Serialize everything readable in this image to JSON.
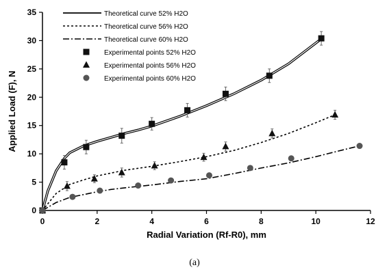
{
  "chart_data": {
    "type": "line",
    "xlabel": "Radial Variation (Rf-R0), mm",
    "ylabel": "Applied Load (F), N",
    "caption": "(a)",
    "xlim": [
      0,
      12
    ],
    "ylim": [
      0,
      35
    ],
    "xticks": [
      "0",
      "2",
      "4",
      "6",
      "8",
      "10",
      "12"
    ],
    "yticks": [
      "0",
      "5",
      "10",
      "15",
      "20",
      "25",
      "30",
      "35"
    ],
    "legend_position": "top-left",
    "curves": [
      {
        "name": "Theoretical curve 52% H2O",
        "style": "solid-double",
        "x": [
          0,
          0.2,
          0.5,
          0.8,
          1.0,
          1.5,
          2.0,
          2.5,
          3.0,
          3.5,
          4.0,
          5.0,
          6.0,
          7.0,
          8.0,
          9.0,
          10.2
        ],
        "y": [
          0,
          3.5,
          7.0,
          9.2,
          10.2,
          11.4,
          12.2,
          12.9,
          13.6,
          14.2,
          14.9,
          16.6,
          18.5,
          20.6,
          23.0,
          25.9,
          30.3
        ]
      },
      {
        "name": "Theoretical curve 56% H2O",
        "style": "dotted",
        "x": [
          0,
          0.5,
          1.0,
          1.5,
          2.0,
          3.0,
          4.0,
          5.0,
          6.0,
          7.0,
          8.0,
          9.0,
          10.0,
          10.7
        ],
        "y": [
          0,
          3.0,
          4.6,
          5.4,
          6.1,
          7.1,
          7.8,
          8.6,
          9.5,
          10.6,
          12.0,
          13.6,
          15.5,
          16.9
        ]
      },
      {
        "name": "Theoretical curve 60% H2O",
        "style": "dash-dot",
        "x": [
          0,
          0.5,
          1.0,
          1.5,
          2.0,
          2.5,
          3.0,
          4.0,
          5.0,
          6.0,
          7.0,
          8.0,
          9.0,
          10.0,
          11.0,
          11.6
        ],
        "y": [
          0,
          1.4,
          2.3,
          2.8,
          3.3,
          3.7,
          4.0,
          4.5,
          5.1,
          5.6,
          6.5,
          7.5,
          8.4,
          9.5,
          10.7,
          11.4
        ]
      }
    ],
    "points": [
      {
        "name": "Experimental points 52% H2O",
        "marker": "square",
        "x": [
          0,
          0.8,
          1.6,
          2.9,
          4.0,
          5.3,
          6.7,
          8.3,
          10.2
        ],
        "y": [
          0,
          8.5,
          11.2,
          13.2,
          15.3,
          17.7,
          20.6,
          23.8,
          30.4
        ],
        "err": [
          0,
          1.2,
          1.2,
          1.3,
          1.1,
          1.2,
          1.2,
          1.2,
          1.2
        ]
      },
      {
        "name": "Experimental points 56% H2O",
        "marker": "triangle",
        "x": [
          0,
          0.9,
          1.9,
          2.9,
          4.1,
          5.9,
          6.7,
          8.4,
          10.7
        ],
        "y": [
          0,
          4.3,
          5.6,
          6.7,
          7.9,
          9.4,
          11.3,
          13.6,
          16.9
        ],
        "err": [
          0,
          0.8,
          0.7,
          0.8,
          0.7,
          0.7,
          0.8,
          0.8,
          0.8
        ]
      },
      {
        "name": "Experimental points 60% H2O",
        "marker": "circle",
        "x": [
          0,
          1.1,
          2.1,
          3.5,
          4.7,
          6.1,
          7.6,
          9.1,
          11.6
        ],
        "y": [
          0,
          2.4,
          3.5,
          4.4,
          5.3,
          6.2,
          7.5,
          9.2,
          11.4
        ],
        "err": [
          0,
          0.4,
          0.4,
          0.4,
          0.4,
          0.4,
          0.4,
          0.4,
          0.4
        ]
      }
    ]
  }
}
